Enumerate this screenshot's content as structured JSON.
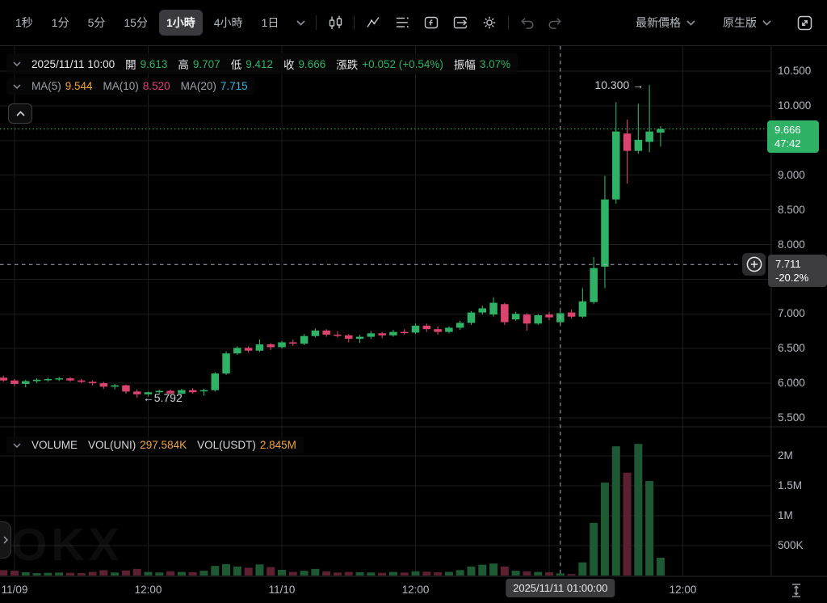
{
  "toolbar": {
    "intervals": [
      {
        "label": "1秒",
        "active": false
      },
      {
        "label": "1分",
        "active": false
      },
      {
        "label": "5分",
        "active": false
      },
      {
        "label": "15分",
        "active": false
      },
      {
        "label": "1小時",
        "active": true
      },
      {
        "label": "4小時",
        "active": false
      },
      {
        "label": "1日",
        "active": false,
        "dropdown": true
      }
    ],
    "icon_names": [
      "candlestick-chart-icon",
      "indicators-icon",
      "template-list-icon",
      "indicator-fx-icon",
      "layout-export-icon",
      "settings-gear-icon",
      "undo-icon",
      "redo-icon"
    ],
    "right": {
      "price_mode_label": "最新價格",
      "render_mode_label": "原生版",
      "expand_icon": "fullscreen-expand-icon"
    }
  },
  "legend": {
    "datetime": "2025/11/11 10:00",
    "fields": [
      {
        "label": "開",
        "value": "9.613"
      },
      {
        "label": "高",
        "value": "9.707"
      },
      {
        "label": "低",
        "value": "9.412"
      },
      {
        "label": "收",
        "value": "9.666"
      },
      {
        "label": "漲跌",
        "value": "+0.052 (+0.54%)"
      },
      {
        "label": "振幅",
        "value": "3.07%"
      }
    ]
  },
  "ma": {
    "items": [
      {
        "label": "MA(5)",
        "value": "9.544",
        "color_key": "ma5"
      },
      {
        "label": "MA(10)",
        "value": "8.520",
        "color_key": "ma10"
      },
      {
        "label": "MA(20)",
        "value": "7.715",
        "color_key": "ma20"
      }
    ]
  },
  "volume_legend": {
    "title": "VOLUME",
    "items": [
      {
        "label": "VOL(UNI)",
        "value": "297.584K"
      },
      {
        "label": "VOL(USDT)",
        "value": "2.845M"
      }
    ]
  },
  "badges": {
    "last_price": "9.666",
    "countdown": "47:42",
    "crosshair_price": "7.711",
    "crosshair_change_pct": "-20.2%",
    "crosshair_time": "2025/11/11 01:00:00"
  },
  "axes": {
    "price_ticks": [
      [
        "10.500",
        10.5
      ],
      [
        "10.000",
        10.0
      ],
      [
        "9.000",
        9.0
      ],
      [
        "8.500",
        8.5
      ],
      [
        "8.000",
        8.0
      ],
      [
        "7.000",
        7.0
      ],
      [
        "6.500",
        6.5
      ],
      [
        "6.000",
        6.0
      ],
      [
        "5.500",
        5.5
      ]
    ],
    "price_gridlines": [
      10.5,
      10.0,
      9.5,
      9.0,
      8.5,
      8.0,
      7.5,
      7.0,
      6.5,
      6.0,
      5.5
    ],
    "volume_ticks": [
      [
        "2M",
        2000
      ],
      [
        "1.5M",
        1500
      ],
      [
        "1M",
        1000
      ],
      [
        "500K",
        500
      ]
    ],
    "time_ticks": [
      [
        "11/09",
        1
      ],
      [
        "12:00",
        13
      ],
      [
        "11/10",
        25
      ],
      [
        "12:00",
        37
      ],
      [
        "12:00",
        61
      ]
    ],
    "time_gridline_indices": [
      1,
      13,
      25,
      37,
      49,
      61
    ]
  },
  "chart_data": {
    "type": "candlestick_with_volume",
    "interval": "1小時",
    "price_axis_visible_range": [
      5.37,
      10.86
    ],
    "volume_axis_max_k": 2600,
    "grid": true,
    "columns": [
      "time",
      "open",
      "high",
      "low",
      "close",
      "volume_k"
    ],
    "candles": [
      [
        "11/08 23:00",
        6.08,
        6.11,
        6.02,
        6.04,
        90
      ],
      [
        "11/09 00:00",
        6.04,
        6.06,
        5.96,
        5.99,
        80
      ],
      [
        "11/09 01:00",
        5.99,
        6.05,
        5.94,
        6.03,
        55
      ],
      [
        "11/09 02:00",
        6.03,
        6.07,
        6.0,
        6.05,
        40
      ],
      [
        "11/09 03:00",
        6.05,
        6.08,
        6.02,
        6.06,
        45
      ],
      [
        "11/09 04:00",
        6.06,
        6.09,
        6.03,
        6.07,
        50
      ],
      [
        "11/09 05:00",
        6.07,
        6.09,
        6.02,
        6.04,
        45
      ],
      [
        "11/09 06:00",
        6.04,
        6.06,
        6.0,
        6.02,
        40
      ],
      [
        "11/09 07:00",
        6.02,
        6.04,
        5.97,
        6.0,
        60
      ],
      [
        "11/09 08:00",
        6.0,
        6.02,
        5.92,
        5.95,
        90
      ],
      [
        "11/09 09:00",
        5.95,
        5.99,
        5.91,
        5.97,
        50
      ],
      [
        "11/09 10:00",
        5.97,
        5.98,
        5.85,
        5.88,
        85
      ],
      [
        "11/09 11:00",
        5.88,
        5.91,
        5.792,
        5.84,
        110
      ],
      [
        "11/09 12:00",
        5.84,
        5.88,
        5.81,
        5.87,
        60
      ],
      [
        "11/09 13:00",
        5.87,
        5.91,
        5.84,
        5.89,
        50
      ],
      [
        "11/09 14:00",
        5.89,
        5.91,
        5.83,
        5.85,
        70
      ],
      [
        "11/09 15:00",
        5.85,
        5.92,
        5.83,
        5.9,
        60
      ],
      [
        "11/09 16:00",
        5.9,
        5.93,
        5.85,
        5.87,
        55
      ],
      [
        "11/09 17:00",
        5.89,
        5.92,
        5.82,
        5.9,
        80
      ],
      [
        "11/09 18:00",
        5.9,
        6.16,
        5.88,
        6.14,
        160
      ],
      [
        "11/09 19:00",
        6.14,
        6.46,
        6.12,
        6.43,
        190
      ],
      [
        "11/09 20:00",
        6.43,
        6.53,
        6.41,
        6.51,
        150
      ],
      [
        "11/09 21:00",
        6.51,
        6.53,
        6.44,
        6.47,
        130
      ],
      [
        "11/09 22:00",
        6.47,
        6.63,
        6.45,
        6.56,
        185
      ],
      [
        "11/09 23:00",
        6.56,
        6.58,
        6.48,
        6.52,
        140
      ],
      [
        "11/10 00:00",
        6.52,
        6.61,
        6.5,
        6.59,
        95
      ],
      [
        "11/10 01:00",
        6.59,
        6.63,
        6.54,
        6.57,
        60
      ],
      [
        "11/10 02:00",
        6.57,
        6.71,
        6.55,
        6.68,
        80
      ],
      [
        "11/10 03:00",
        6.68,
        6.79,
        6.66,
        6.76,
        110
      ],
      [
        "11/10 04:00",
        6.76,
        6.78,
        6.67,
        6.7,
        70
      ],
      [
        "11/10 05:00",
        6.7,
        6.75,
        6.66,
        6.69,
        50
      ],
      [
        "11/10 06:00",
        6.69,
        6.71,
        6.59,
        6.64,
        60
      ],
      [
        "11/10 07:00",
        6.64,
        6.7,
        6.58,
        6.67,
        55
      ],
      [
        "11/10 08:00",
        6.67,
        6.75,
        6.64,
        6.72,
        50
      ],
      [
        "11/10 09:00",
        6.72,
        6.74,
        6.65,
        6.69,
        45
      ],
      [
        "11/10 10:00",
        6.69,
        6.77,
        6.67,
        6.74,
        60
      ],
      [
        "11/10 11:00",
        6.74,
        6.78,
        6.7,
        6.73,
        50
      ],
      [
        "11/10 12:00",
        6.73,
        6.86,
        6.71,
        6.83,
        70
      ],
      [
        "11/10 13:00",
        6.83,
        6.86,
        6.74,
        6.78,
        65
      ],
      [
        "11/10 14:00",
        6.78,
        6.82,
        6.7,
        6.74,
        55
      ],
      [
        "11/10 15:00",
        6.74,
        6.82,
        6.72,
        6.8,
        60
      ],
      [
        "11/10 16:00",
        6.8,
        6.9,
        6.77,
        6.87,
        90
      ],
      [
        "11/10 17:00",
        6.87,
        7.04,
        6.84,
        7.02,
        150
      ],
      [
        "11/10 18:00",
        7.02,
        7.12,
        6.99,
        7.08,
        180
      ],
      [
        "11/10 19:00",
        6.99,
        7.24,
        6.96,
        7.16,
        200
      ],
      [
        "11/10 20:00",
        7.14,
        7.16,
        6.84,
        6.88,
        150
      ],
      [
        "11/10 21:00",
        6.92,
        7.03,
        6.9,
        7.0,
        80
      ],
      [
        "11/10 22:00",
        6.99,
        7.01,
        6.76,
        6.86,
        70
      ],
      [
        "11/10 23:00",
        6.86,
        7.0,
        6.84,
        6.98,
        60
      ],
      [
        "11/11 00:00",
        6.99,
        7.03,
        6.91,
        6.95,
        55
      ],
      [
        "11/11 01:00",
        6.88,
        7.04,
        6.86,
        7.01,
        35
      ],
      [
        "11/11 02:00",
        7.02,
        7.06,
        6.93,
        6.96,
        25
      ],
      [
        "11/11 03:00",
        6.96,
        7.37,
        6.94,
        7.18,
        220
      ],
      [
        "11/11 04:00",
        7.17,
        7.82,
        7.14,
        7.66,
        880
      ],
      [
        "11/11 05:00",
        7.68,
        8.99,
        7.37,
        8.65,
        1554
      ],
      [
        "11/11 06:00",
        8.65,
        10.05,
        8.59,
        9.63,
        2160
      ],
      [
        "11/11 07:00",
        9.6,
        9.8,
        8.88,
        9.35,
        1720
      ],
      [
        "11/11 08:00",
        9.35,
        10.03,
        9.31,
        9.51,
        2200
      ],
      [
        "11/11 09:00",
        9.48,
        10.3,
        9.33,
        9.63,
        1580
      ],
      [
        "11/11 10:00",
        9.613,
        9.707,
        9.412,
        9.666,
        297.584
      ]
    ],
    "last": {
      "price": 9.666,
      "countdown": "47:42"
    },
    "crosshair": {
      "index": 50,
      "price": 7.711,
      "change_pct": "-20.2%",
      "time": "2025/11/11 01:00:00"
    },
    "annotations": [
      {
        "text": "←5.792",
        "index": 12,
        "price": 5.792,
        "side": "right"
      },
      {
        "text": "10.300 →",
        "index": 58,
        "price": 10.3,
        "side": "left"
      }
    ]
  },
  "colors": {
    "up": "#2fb266",
    "down": "#dc4470",
    "vol_up": "#1d5a33",
    "vol_down": "#5c2031",
    "ma5": "#eda33c",
    "ma10": "#e2427d",
    "ma20": "#3ab6d8",
    "orange": "#eda33c",
    "grid": "#1c1c1c",
    "border": "#26262a",
    "axis_text": "#b4b8bf",
    "crosshair": "#a9aebc",
    "badge_bg": "#3c3c3f"
  }
}
